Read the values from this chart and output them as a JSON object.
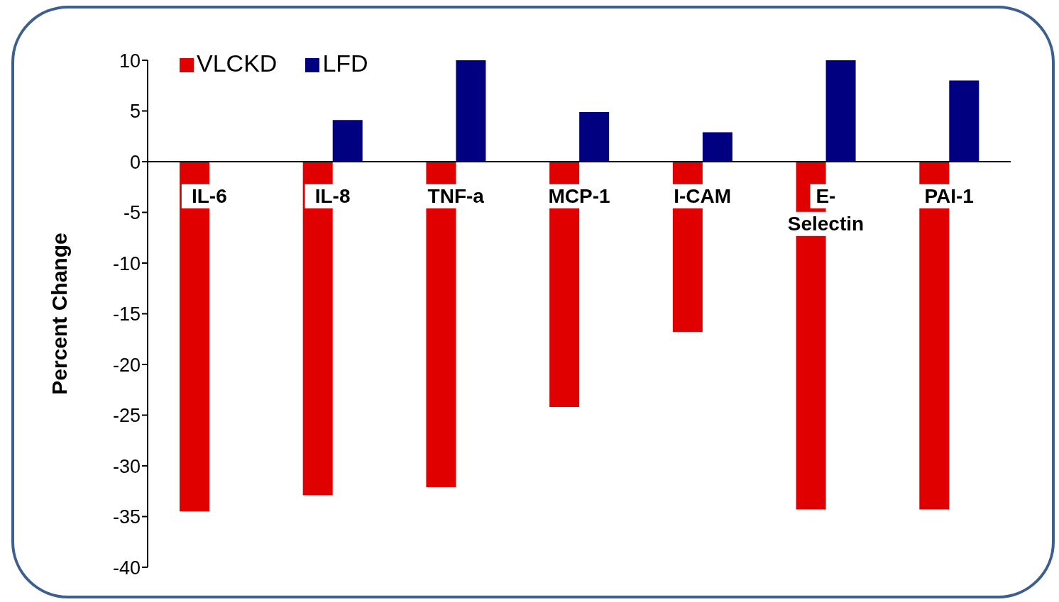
{
  "chart_data": {
    "type": "bar",
    "ylabel": "Percent Change",
    "categories": [
      "IL-6",
      "IL-8",
      "TNF-a",
      "MCP-1",
      "I-CAM",
      "E-Selectin",
      "PAI-1"
    ],
    "series": [
      {
        "name": "VLCKD",
        "color": "#e00000",
        "values": [
          -34.5,
          -32.9,
          -32.1,
          -24.2,
          -16.8,
          -34.3,
          -34.3
        ]
      },
      {
        "name": "LFD",
        "color": "#000080",
        "values": [
          null,
          4.1,
          10,
          4.9,
          2.9,
          10,
          8.0
        ]
      }
    ],
    "ylim": [
      -40,
      10
    ],
    "yticks": [
      -40,
      -35,
      -30,
      -25,
      -20,
      -15,
      -10,
      -5,
      0,
      5,
      10
    ],
    "legend": "top left"
  }
}
